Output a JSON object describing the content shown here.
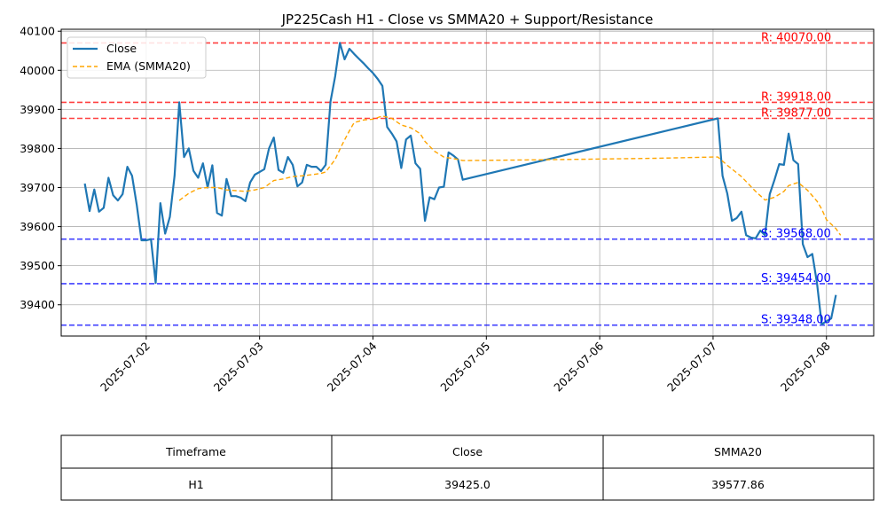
{
  "chart_data": {
    "type": "line",
    "title": "JP225Cash H1 - Close vs SMMA20 + Support/Resistance",
    "xlabel": "",
    "ylabel": "",
    "x_range": [
      "2025-07-01 06:00",
      "2025-07-08 10:00"
    ],
    "y_range": [
      39320,
      40105
    ],
    "x_ticks": [
      "2025-07-02",
      "2025-07-03",
      "2025-07-04",
      "2025-07-05",
      "2025-07-06",
      "2025-07-07",
      "2025-07-08"
    ],
    "y_ticks": [
      39400,
      39500,
      39600,
      39700,
      39800,
      39900,
      40000,
      40100
    ],
    "grid": true,
    "legend": {
      "placement": "top-left",
      "entries": [
        "Close",
        "EMA (SMMA20)"
      ]
    },
    "series": [
      {
        "name": "Close",
        "color": "#1f77b4",
        "style": "solid",
        "points": [
          [
            "2025-07-01 11:00",
            39710
          ],
          [
            "2025-07-01 12:00",
            39640
          ],
          [
            "2025-07-01 13:00",
            39695
          ],
          [
            "2025-07-01 14:00",
            39638
          ],
          [
            "2025-07-01 15:00",
            39648
          ],
          [
            "2025-07-01 16:00",
            39725
          ],
          [
            "2025-07-01 17:00",
            39680
          ],
          [
            "2025-07-01 18:00",
            39667
          ],
          [
            "2025-07-01 19:00",
            39683
          ],
          [
            "2025-07-01 20:00",
            39753
          ],
          [
            "2025-07-01 21:00",
            39730
          ],
          [
            "2025-07-01 22:00",
            39655
          ],
          [
            "2025-07-01 23:00",
            39565
          ],
          [
            "2025-07-02 00:00",
            39565
          ],
          [
            "2025-07-02 01:00",
            39568
          ],
          [
            "2025-07-02 02:00",
            39456
          ],
          [
            "2025-07-02 03:00",
            39660
          ],
          [
            "2025-07-02 04:00",
            39582
          ],
          [
            "2025-07-02 05:00",
            39625
          ],
          [
            "2025-07-02 06:00",
            39730
          ],
          [
            "2025-07-02 07:00",
            39918
          ],
          [
            "2025-07-02 08:00",
            39778
          ],
          [
            "2025-07-02 09:00",
            39800
          ],
          [
            "2025-07-02 10:00",
            39743
          ],
          [
            "2025-07-02 11:00",
            39725
          ],
          [
            "2025-07-02 12:00",
            39762
          ],
          [
            "2025-07-02 13:00",
            39700
          ],
          [
            "2025-07-02 14:00",
            39757
          ],
          [
            "2025-07-02 15:00",
            39635
          ],
          [
            "2025-07-02 16:00",
            39628
          ],
          [
            "2025-07-02 17:00",
            39722
          ],
          [
            "2025-07-02 18:00",
            39678
          ],
          [
            "2025-07-02 19:00",
            39678
          ],
          [
            "2025-07-02 20:00",
            39674
          ],
          [
            "2025-07-02 21:00",
            39665
          ],
          [
            "2025-07-02 22:00",
            39713
          ],
          [
            "2025-07-02 23:00",
            39733
          ],
          [
            "2025-07-03 00:00",
            39740
          ],
          [
            "2025-07-03 01:00",
            39747
          ],
          [
            "2025-07-03 02:00",
            39800
          ],
          [
            "2025-07-03 03:00",
            39828
          ],
          [
            "2025-07-03 04:00",
            39745
          ],
          [
            "2025-07-03 05:00",
            39738
          ],
          [
            "2025-07-03 06:00",
            39778
          ],
          [
            "2025-07-03 07:00",
            39758
          ],
          [
            "2025-07-03 08:00",
            39703
          ],
          [
            "2025-07-03 09:00",
            39713
          ],
          [
            "2025-07-03 10:00",
            39758
          ],
          [
            "2025-07-03 11:00",
            39753
          ],
          [
            "2025-07-03 12:00",
            39753
          ],
          [
            "2025-07-03 13:00",
            39742
          ],
          [
            "2025-07-03 14:00",
            39758
          ],
          [
            "2025-07-03 15:00",
            39920
          ],
          [
            "2025-07-03 16:00",
            39985
          ],
          [
            "2025-07-03 17:00",
            40070
          ],
          [
            "2025-07-03 18:00",
            40028
          ],
          [
            "2025-07-03 19:00",
            40055
          ],
          [
            "2025-07-03 20:00",
            40042
          ],
          [
            "2025-07-03 21:00",
            40030
          ],
          [
            "2025-07-03 22:00",
            40018
          ],
          [
            "2025-07-03 23:00",
            40005
          ],
          [
            "2025-07-04 00:00",
            39993
          ],
          [
            "2025-07-04 01:00",
            39978
          ],
          [
            "2025-07-04 02:00",
            39960
          ],
          [
            "2025-07-04 03:00",
            39855
          ],
          [
            "2025-07-04 04:00",
            39838
          ],
          [
            "2025-07-04 05:00",
            39818
          ],
          [
            "2025-07-04 06:00",
            39750
          ],
          [
            "2025-07-04 07:00",
            39823
          ],
          [
            "2025-07-04 08:00",
            39833
          ],
          [
            "2025-07-04 09:00",
            39762
          ],
          [
            "2025-07-04 10:00",
            39748
          ],
          [
            "2025-07-04 11:00",
            39615
          ],
          [
            "2025-07-04 12:00",
            39675
          ],
          [
            "2025-07-04 13:00",
            39670
          ],
          [
            "2025-07-04 14:00",
            39700
          ],
          [
            "2025-07-04 15:00",
            39702
          ],
          [
            "2025-07-04 16:00",
            39790
          ],
          [
            "2025-07-04 17:00",
            39782
          ],
          [
            "2025-07-04 18:00",
            39772
          ],
          [
            "2025-07-04 19:00",
            39720
          ],
          [
            "2025-07-07 01:00",
            39877
          ],
          [
            "2025-07-07 02:00",
            39730
          ],
          [
            "2025-07-07 03:00",
            39685
          ],
          [
            "2025-07-07 04:00",
            39615
          ],
          [
            "2025-07-07 05:00",
            39622
          ],
          [
            "2025-07-07 06:00",
            39638
          ],
          [
            "2025-07-07 07:00",
            39578
          ],
          [
            "2025-07-07 08:00",
            39572
          ],
          [
            "2025-07-07 09:00",
            39570
          ],
          [
            "2025-07-07 10:00",
            39590
          ],
          [
            "2025-07-07 11:00",
            39578
          ],
          [
            "2025-07-07 12:00",
            39683
          ],
          [
            "2025-07-07 13:00",
            39720
          ],
          [
            "2025-07-07 14:00",
            39760
          ],
          [
            "2025-07-07 15:00",
            39758
          ],
          [
            "2025-07-07 16:00",
            39838
          ],
          [
            "2025-07-07 17:00",
            39770
          ],
          [
            "2025-07-07 18:00",
            39760
          ],
          [
            "2025-07-07 19:00",
            39555
          ],
          [
            "2025-07-07 20:00",
            39522
          ],
          [
            "2025-07-07 21:00",
            39530
          ],
          [
            "2025-07-07 22:00",
            39455
          ],
          [
            "2025-07-07 23:00",
            39350
          ],
          [
            "2025-07-08 00:00",
            39358
          ],
          [
            "2025-07-08 01:00",
            39365
          ],
          [
            "2025-07-08 02:00",
            39425
          ]
        ]
      },
      {
        "name": "EMA (SMMA20)",
        "color": "#ffa500",
        "style": "dashed",
        "points": [
          [
            "2025-07-02 07:00",
            39667
          ],
          [
            "2025-07-02 09:00",
            39685
          ],
          [
            "2025-07-02 11:00",
            39697
          ],
          [
            "2025-07-02 13:00",
            39700
          ],
          [
            "2025-07-02 15:00",
            39700
          ],
          [
            "2025-07-02 17:00",
            39694
          ],
          [
            "2025-07-02 19:00",
            39692
          ],
          [
            "2025-07-02 21:00",
            39690
          ],
          [
            "2025-07-02 23:00",
            39694
          ],
          [
            "2025-07-03 01:00",
            39700
          ],
          [
            "2025-07-03 03:00",
            39718
          ],
          [
            "2025-07-03 05:00",
            39722
          ],
          [
            "2025-07-03 07:00",
            39728
          ],
          [
            "2025-07-03 09:00",
            39730
          ],
          [
            "2025-07-03 11:00",
            39733
          ],
          [
            "2025-07-03 13:00",
            39736
          ],
          [
            "2025-07-03 14:00",
            39740
          ],
          [
            "2025-07-03 16:00",
            39772
          ],
          [
            "2025-07-03 17:00",
            39798
          ],
          [
            "2025-07-03 18:00",
            39822
          ],
          [
            "2025-07-03 19:00",
            39845
          ],
          [
            "2025-07-03 20:00",
            39866
          ],
          [
            "2025-07-03 22:00",
            39873
          ],
          [
            "2025-07-04 00:00",
            39875
          ],
          [
            "2025-07-04 02:00",
            39883
          ],
          [
            "2025-07-04 04:00",
            39877
          ],
          [
            "2025-07-04 06:00",
            39860
          ],
          [
            "2025-07-04 08:00",
            39853
          ],
          [
            "2025-07-04 10:00",
            39838
          ],
          [
            "2025-07-04 11:00",
            39818
          ],
          [
            "2025-07-04 13:00",
            39793
          ],
          [
            "2025-07-04 15:00",
            39778
          ],
          [
            "2025-07-04 18:00",
            39772
          ],
          [
            "2025-07-04 19:00",
            39769
          ],
          [
            "2025-07-05 12:00",
            39771
          ],
          [
            "2025-07-06 12:00",
            39775
          ],
          [
            "2025-07-07 00:00",
            39778
          ],
          [
            "2025-07-07 01:00",
            39778
          ],
          [
            "2025-07-07 03:00",
            39757
          ],
          [
            "2025-07-07 06:00",
            39728
          ],
          [
            "2025-07-07 09:00",
            39690
          ],
          [
            "2025-07-07 11:00",
            39668
          ],
          [
            "2025-07-07 13:00",
            39675
          ],
          [
            "2025-07-07 15:00",
            39690
          ],
          [
            "2025-07-07 16:00",
            39705
          ],
          [
            "2025-07-07 18:00",
            39713
          ],
          [
            "2025-07-07 20:00",
            39693
          ],
          [
            "2025-07-07 22:00",
            39665
          ],
          [
            "2025-07-07 23:00",
            39645
          ],
          [
            "2025-07-08 00:00",
            39618
          ],
          [
            "2025-07-08 02:00",
            39595
          ],
          [
            "2025-07-08 03:00",
            39578
          ]
        ]
      }
    ],
    "levels": [
      {
        "type": "resistance",
        "value": 40070,
        "label": "R: 40070.00",
        "color": "#ff0000"
      },
      {
        "type": "resistance",
        "value": 39918,
        "label": "R: 39918.00",
        "color": "#ff0000"
      },
      {
        "type": "resistance",
        "value": 39877,
        "label": "R: 39877.00",
        "color": "#ff0000"
      },
      {
        "type": "support",
        "value": 39568,
        "label": "S: 39568.00",
        "color": "#0000ff"
      },
      {
        "type": "support",
        "value": 39454,
        "label": "S: 39454.00",
        "color": "#0000ff"
      },
      {
        "type": "support",
        "value": 39348,
        "label": "S: 39348.00",
        "color": "#0000ff"
      }
    ]
  },
  "table": {
    "headers": [
      "Timeframe",
      "Close",
      "SMMA20"
    ],
    "rows": [
      [
        "H1",
        "39425.0",
        "39577.86"
      ]
    ]
  }
}
